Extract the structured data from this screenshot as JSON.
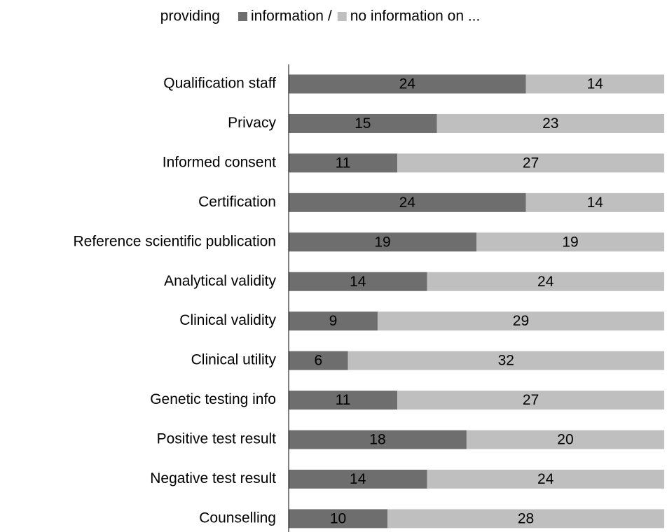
{
  "chart_data": {
    "type": "stacked-bar-horizontal",
    "legend_prefix": "providing",
    "legend_separator": "/",
    "categories": [
      "Qualification staff",
      "Privacy",
      "Informed consent",
      "Certification",
      "Reference scientific publication",
      "Analytical validity",
      "Clinical validity",
      "Clinical utility",
      "Genetic testing info",
      "Positive test result",
      "Negative test result",
      "Counselling"
    ],
    "series": [
      {
        "name": "information",
        "color": "#6e6e6e",
        "values": [
          24,
          15,
          11,
          24,
          19,
          14,
          9,
          6,
          11,
          18,
          14,
          10
        ]
      },
      {
        "name": "no information on ...",
        "color": "#bfbfbf",
        "values": [
          14,
          23,
          27,
          14,
          19,
          24,
          29,
          32,
          27,
          20,
          24,
          28
        ]
      }
    ],
    "xlim": [
      0,
      38
    ]
  }
}
